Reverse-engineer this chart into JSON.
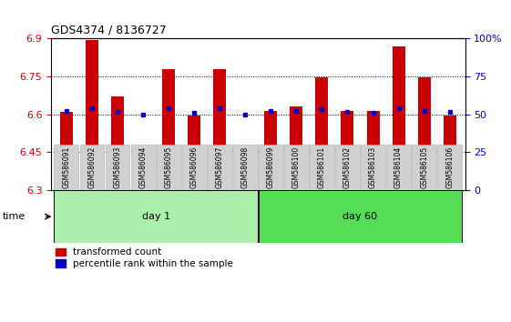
{
  "title": "GDS4374 / 8136727",
  "samples": [
    "GSM586091",
    "GSM586092",
    "GSM586093",
    "GSM586094",
    "GSM586095",
    "GSM586096",
    "GSM586097",
    "GSM586098",
    "GSM586099",
    "GSM586100",
    "GSM586101",
    "GSM586102",
    "GSM586103",
    "GSM586104",
    "GSM586105",
    "GSM586106"
  ],
  "bar_values": [
    6.61,
    6.895,
    6.67,
    6.475,
    6.78,
    6.595,
    6.78,
    6.435,
    6.615,
    6.63,
    6.745,
    6.615,
    6.615,
    6.87,
    6.745,
    6.595
  ],
  "dot_values": [
    6.615,
    6.625,
    6.61,
    6.6,
    6.625,
    6.605,
    6.625,
    6.6,
    6.615,
    6.615,
    6.62,
    6.61,
    6.605,
    6.625,
    6.615,
    6.61
  ],
  "bar_color": "#cc0000",
  "dot_color": "#0000cc",
  "ylim_left": [
    6.3,
    6.9
  ],
  "yticks_left": [
    6.3,
    6.45,
    6.6,
    6.75,
    6.9
  ],
  "ytick_labels_left": [
    "6.3",
    "6.45",
    "6.6",
    "6.75",
    "6.9"
  ],
  "ylim_right": [
    0,
    100
  ],
  "yticks_right": [
    0,
    25,
    50,
    75,
    100
  ],
  "ytick_labels_right": [
    "0",
    "25",
    "50",
    "75",
    "100%"
  ],
  "day1_group": [
    0,
    7
  ],
  "day60_group": [
    8,
    15
  ],
  "day1_label": "day 1",
  "day60_label": "day 60",
  "group_color_day1": "#aaf0aa",
  "group_color_day60": "#55dd55",
  "time_label": "time",
  "legend_red": "transformed count",
  "legend_blue": "percentile rank within the sample",
  "bar_width": 0.5,
  "bar_bottom": 6.3
}
